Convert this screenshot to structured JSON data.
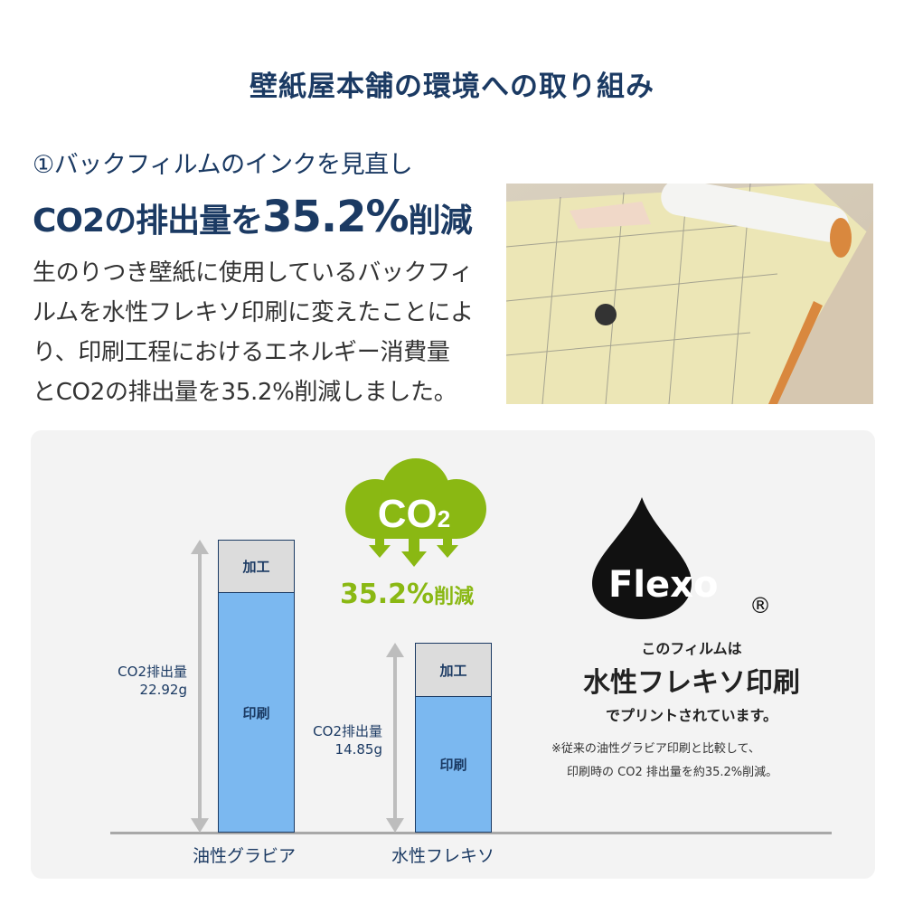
{
  "header": {
    "title": "壁紙屋本舗の環境への取り組み"
  },
  "section": {
    "subtitle": "①バックフィルムのインクを見直し",
    "headline_pre": "CO2の排出量を",
    "headline_value": "35.2%",
    "headline_post": "削減",
    "body_lines": [
      "生のりつき壁紙に使用しているバックフィ",
      "ルムを水性フレキソ印刷に変えたことによ",
      "り、印刷工程におけるエネルギー消費量",
      "とCO2の排出量を35.2%削減しました。"
    ]
  },
  "cloud": {
    "label": "CO",
    "subscript": "2",
    "reduction": "35.2%",
    "reduction_suffix": "削減",
    "color": "#8ab813"
  },
  "flexo": {
    "logo": "Flexo",
    "registered": "®",
    "line1": "このフィルムは",
    "line2": "水性フレキソ印刷",
    "line3": "でプリントされています。",
    "note1": "※従来の油性グラビア印刷と比較して、",
    "note2": "印刷時の CO2 排出量を約35.2%削減。"
  },
  "chart_data": {
    "type": "bar",
    "stacked": true,
    "categories": [
      "油性グラビア",
      "水性フレキソ"
    ],
    "totals": [
      22.92,
      14.85
    ],
    "unit": "g",
    "value_label": "CO2排出量",
    "value_texts": [
      "22.92g",
      "14.85g"
    ],
    "segments": [
      "加工",
      "印刷"
    ],
    "colors": {
      "加工": "#dcdcdc",
      "印刷": "#7bb8f0",
      "outline": "#1b3a63"
    }
  }
}
